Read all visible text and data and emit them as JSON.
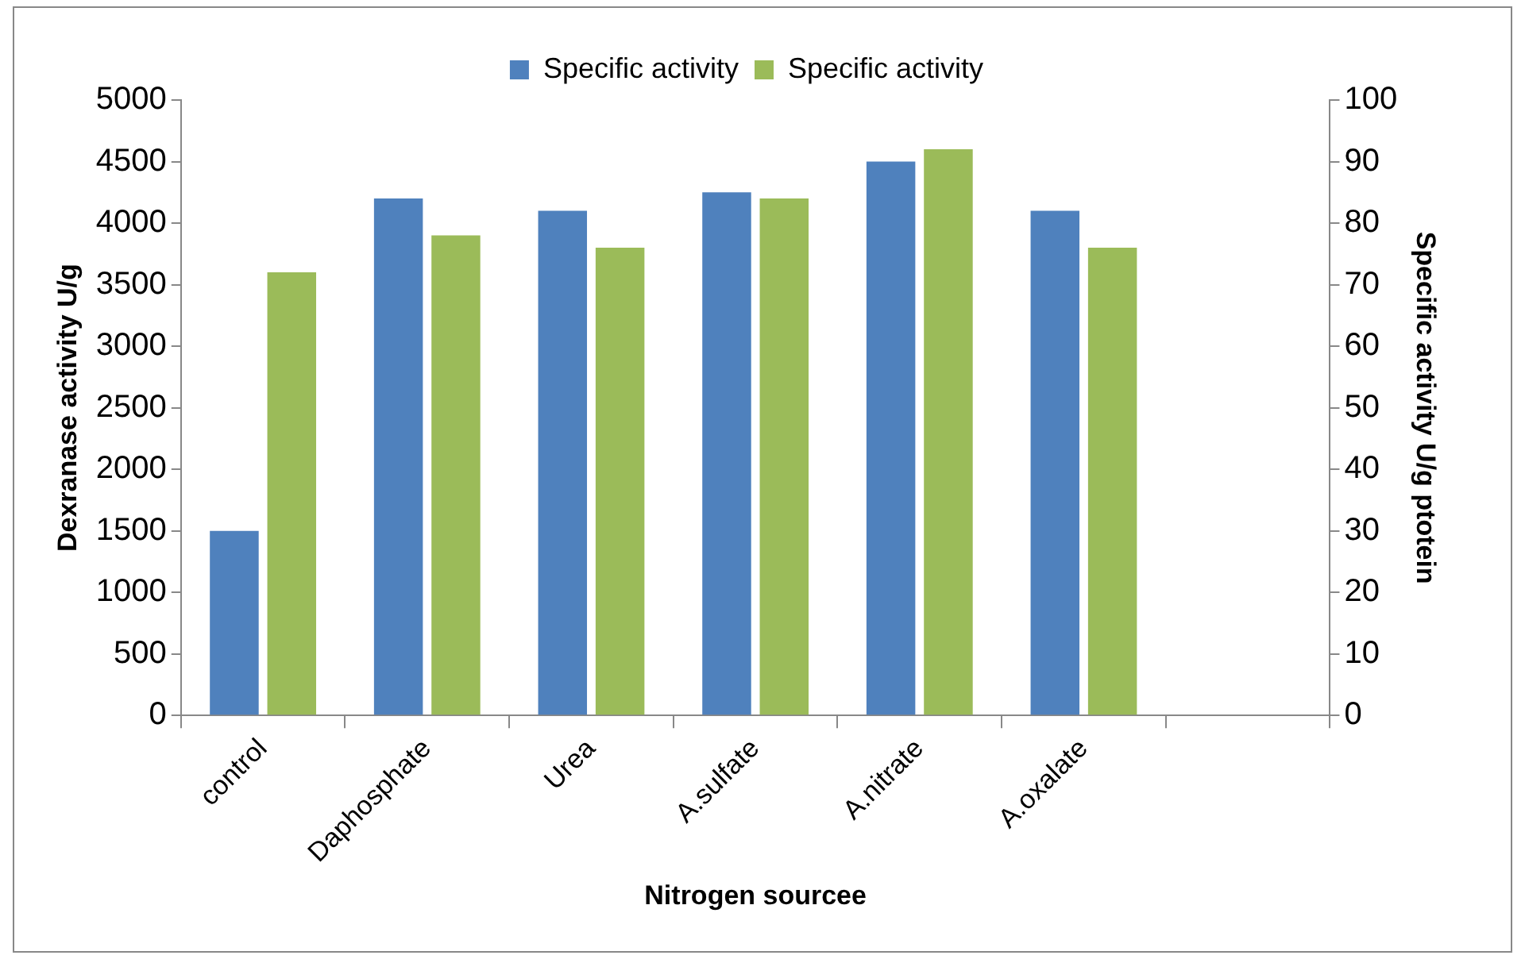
{
  "chart_data": {
    "type": "bar",
    "xlabel": "Nitrogen sourcee",
    "ylabel": "Dexranase activity U/g",
    "y2label": "Specific activity U/g ptotein",
    "categories": [
      "control",
      "Daphosphate",
      "Urea",
      "A.sulfate",
      "A.nitrate",
      "A.oxalate",
      null
    ],
    "series": [
      {
        "name": "Specific activity",
        "color": "#4f81bd",
        "values": [
          1500,
          4200,
          4100,
          4250,
          4500,
          4100,
          null
        ]
      },
      {
        "name": "Specific activity",
        "color": "#9bbb59",
        "axis": "y2",
        "values": [
          72,
          78,
          76,
          84,
          92,
          76,
          null
        ]
      }
    ],
    "ylim": [
      0,
      5000
    ],
    "yticks": [
      0,
      500,
      1000,
      1500,
      2000,
      2500,
      3000,
      3500,
      4000,
      4500,
      5000
    ],
    "y2lim": [
      0,
      100
    ],
    "y2ticks": [
      0,
      10,
      20,
      30,
      40,
      50,
      60,
      70,
      80,
      90,
      100
    ],
    "grid": false,
    "legend": "top"
  }
}
